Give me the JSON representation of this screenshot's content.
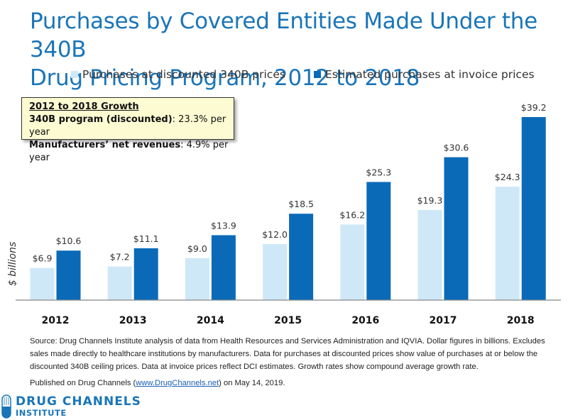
{
  "chart_data": {
    "type": "bar",
    "title": "Purchases by Covered Entities Made Under the 340B Drug Pricing Program, 2012 to 2018",
    "title_lines": [
      "Purchases by Covered Entities Made Under the 340B",
      "Drug Pricing Program, 2012 to 2018"
    ],
    "xlabel": "",
    "ylabel": "$ billions",
    "ylim": [
      0,
      40
    ],
    "grid": false,
    "legend_position": "top",
    "categories": [
      "2012",
      "2013",
      "2014",
      "2015",
      "2016",
      "2017",
      "2018"
    ],
    "series": [
      {
        "name": "Purchases at discounted 340B prices",
        "color": "#cfe8f7",
        "values": [
          6.9,
          7.2,
          9.0,
          12.0,
          16.2,
          19.3,
          24.3
        ],
        "labels": [
          "$6.9",
          "$7.2",
          "$9.0",
          "$12.0",
          "$16.2",
          "$19.3",
          "$24.3"
        ]
      },
      {
        "name": "Estimated purchases at invoice prices",
        "color": "#0a6ab8",
        "values": [
          10.6,
          11.1,
          13.9,
          18.5,
          25.3,
          30.6,
          39.2
        ],
        "labels": [
          "$10.6",
          "$11.1",
          "$13.9",
          "$18.5",
          "$25.3",
          "$30.6",
          "$39.2"
        ]
      }
    ],
    "annotations": {
      "growth_box": {
        "heading": "2012 to 2018 Growth",
        "line1_bold": "340B program (discounted)",
        "line1_rest": ": 23.3% per year",
        "line2_bold": "Manufacturers’ net revenues",
        "line2_rest": ": 4.9% per year"
      }
    }
  },
  "colors": {
    "title": "#1a75b8",
    "discounted": "#cfe8f7",
    "invoice": "#0a6ab8",
    "callout_bg": "#fdfbd2"
  },
  "footer": {
    "source": "Source: Drug Channels Institute analysis of data from Health Resources and Services Administration and IQVIA. Dollar figures in billions. Excludes sales made directly to healthcare institutions by manufacturers. Data for purchases at discounted prices show value of purchases at or below the discounted 340B ceiling prices. Data at invoice prices reflect DCI estimates. Growth rates show compound average growth rate.",
    "published_prefix": "Published on Drug Channels (",
    "published_link": "www.DrugChannels.net",
    "published_suffix": ") on May 14, 2019."
  },
  "logo": {
    "line1": "DRUG CHANNELS",
    "line2": "INSTITUTE"
  }
}
